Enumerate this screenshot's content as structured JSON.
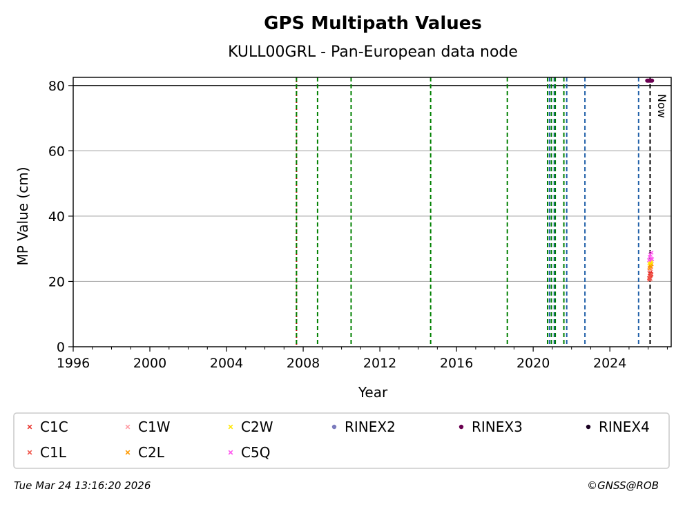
{
  "chart_data": {
    "type": "scatter",
    "title": "GPS Multipath Values",
    "subtitle": "KULL00GRL - Pan-European data node",
    "xlabel": "Year",
    "ylabel": "MP Value (cm)",
    "xlim": [
      1996,
      2027.2
    ],
    "ylim": [
      0,
      82.5
    ],
    "x_ticks": [
      1996,
      2000,
      2004,
      2008,
      2012,
      2016,
      2020,
      2024
    ],
    "y_ticks": [
      0,
      20,
      40,
      60,
      80
    ],
    "grid": "horizontal",
    "reference_line_y": 80,
    "now_label": "Now",
    "now_x": 2026.23,
    "legend_position": "bottom",
    "vertical_events": [
      {
        "x": 2007.65,
        "color": "#cc0000",
        "style": "dotted"
      },
      {
        "x": 2007.65,
        "color": "#008000",
        "style": "dashed"
      },
      {
        "x": 2008.75,
        "color": "#008000",
        "style": "dashed"
      },
      {
        "x": 2010.5,
        "color": "#008000",
        "style": "dashed"
      },
      {
        "x": 2014.65,
        "color": "#008000",
        "style": "dashed"
      },
      {
        "x": 2018.65,
        "color": "#008000",
        "style": "dashed"
      },
      {
        "x": 2020.75,
        "color": "#008000",
        "style": "dashed"
      },
      {
        "x": 2020.85,
        "color": "#1f5fa8",
        "style": "dashed"
      },
      {
        "x": 2020.95,
        "color": "#008000",
        "style": "dashed"
      },
      {
        "x": 2021.1,
        "color": "#1f5fa8",
        "style": "dashed"
      },
      {
        "x": 2021.15,
        "color": "#008000",
        "style": "dashed"
      },
      {
        "x": 2021.6,
        "color": "#008000",
        "style": "dashed"
      },
      {
        "x": 2021.75,
        "color": "#1f5fa8",
        "style": "dashed"
      },
      {
        "x": 2022.7,
        "color": "#1f5fa8",
        "style": "dashed"
      },
      {
        "x": 2025.5,
        "color": "#1f5fa8",
        "style": "dashed"
      },
      {
        "x": 2026.1,
        "color": "#000000",
        "style": "dashed"
      }
    ],
    "series": [
      {
        "name": "C1C",
        "color": "#e8312a",
        "marker": "x",
        "points": [
          [
            2026.05,
            21.0
          ],
          [
            2026.08,
            22.5
          ],
          [
            2026.11,
            21.8
          ],
          [
            2026.14,
            23.0
          ],
          [
            2026.17,
            22.2
          ]
        ]
      },
      {
        "name": "C1L",
        "color": "#f0554a",
        "marker": "x",
        "points": [
          [
            2026.06,
            20.5
          ],
          [
            2026.09,
            21.5
          ],
          [
            2026.12,
            20.8
          ],
          [
            2026.15,
            22.0
          ]
        ]
      },
      {
        "name": "C1W",
        "color": "#ff9aa2",
        "marker": "x",
        "points": [
          [
            2026.05,
            23.5
          ],
          [
            2026.09,
            24.2
          ],
          [
            2026.13,
            23.8
          ],
          [
            2026.16,
            24.5
          ]
        ]
      },
      {
        "name": "C2L",
        "color": "#ff9900",
        "marker": "x",
        "points": [
          [
            2026.07,
            24.0
          ],
          [
            2026.1,
            25.0
          ],
          [
            2026.14,
            24.5
          ],
          [
            2026.18,
            25.3
          ]
        ]
      },
      {
        "name": "C2W",
        "color": "#ffe600",
        "marker": "x",
        "points": [
          [
            2026.06,
            25.5
          ],
          [
            2026.1,
            26.0
          ],
          [
            2026.15,
            25.8
          ]
        ]
      },
      {
        "name": "C5Q",
        "color": "#ff55ee",
        "marker": "x",
        "points": [
          [
            2026.05,
            26.5
          ],
          [
            2026.08,
            27.5
          ],
          [
            2026.11,
            28.2
          ],
          [
            2026.14,
            27.0
          ],
          [
            2026.17,
            28.8
          ],
          [
            2026.2,
            26.8
          ]
        ]
      },
      {
        "name": "RINEX2",
        "color": "#7b7bbd",
        "marker": "dot",
        "points": []
      },
      {
        "name": "RINEX3",
        "color": "#6a0050",
        "marker": "dot",
        "points": [
          [
            2025.95,
            81.5
          ],
          [
            2026.0,
            81.5
          ],
          [
            2026.05,
            81.5
          ],
          [
            2026.1,
            81.5
          ],
          [
            2026.15,
            81.5
          ],
          [
            2026.2,
            81.5
          ]
        ]
      },
      {
        "name": "RINEX4",
        "color": "#1a0022",
        "marker": "dot",
        "points": []
      }
    ],
    "legend_order": [
      "C1C",
      "C1W",
      "C2W",
      "RINEX2",
      "RINEX3",
      "RINEX4",
      "C1L",
      "C2L",
      "C5Q"
    ]
  },
  "footer": {
    "timestamp": "Tue Mar 24 13:16:20 2026",
    "credit": "©GNSS@ROB"
  }
}
